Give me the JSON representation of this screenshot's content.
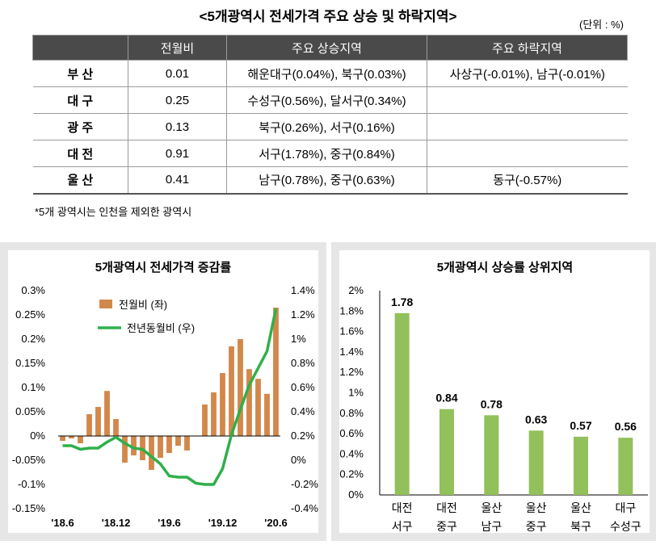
{
  "header": {
    "title": "<5개광역시 전세가격 주요 상승 및 하락지역>",
    "unit": "(단위 : %)"
  },
  "table": {
    "columns": [
      "",
      "전월비",
      "주요 상승지역",
      "주요 하락지역"
    ],
    "rows": [
      {
        "city": "부 산",
        "mom": "0.01",
        "up": "해운대구(0.04%), 북구(0.03%)",
        "down": "사상구(-0.01%), 남구(-0.01%)"
      },
      {
        "city": "대 구",
        "mom": "0.25",
        "up": "수성구(0.56%), 달서구(0.34%)",
        "down": ""
      },
      {
        "city": "광 주",
        "mom": "0.13",
        "up": "북구(0.26%), 서구(0.16%)",
        "down": ""
      },
      {
        "city": "대 전",
        "mom": "0.91",
        "up": "서구(1.78%), 중구(0.84%)",
        "down": ""
      },
      {
        "city": "울 산",
        "mom": "0.41",
        "up": "남구(0.78%), 중구(0.63%)",
        "down": "동구(-0.57%)"
      }
    ]
  },
  "footnote": "*5개 광역시는 인천을 제외한 광역시",
  "colors": {
    "bar_orange": "#d2884a",
    "line_green": "#2eb04a",
    "bar_green": "#92c05a",
    "panel_bg": "#e6e6e6",
    "header_bg": "#4a4a4a"
  },
  "chart_data": [
    {
      "type": "bar+line",
      "title": "5개광역시 전세가격 증감률",
      "legend": [
        "전월비 (좌)",
        "전년동월비 (우)"
      ],
      "x_ticks": [
        "'18.6",
        "'18.12",
        "'19.6",
        "'19.12",
        "'20.6"
      ],
      "left_axis": {
        "ticks": [
          "0.3%",
          "0.25%",
          "0.2%",
          "0.15%",
          "0.1%",
          "0.05%",
          "0%",
          "-0.05%",
          "-0.1%",
          "-0.15%"
        ],
        "ylim": [
          -0.15,
          0.3
        ]
      },
      "right_axis": {
        "ticks": [
          "1.4%",
          "1.2%",
          "1%",
          "0.8%",
          "0.6%",
          "0.4%",
          "0.2%",
          "0%",
          "-0.2%",
          "-0.4%"
        ],
        "ylim": [
          -0.4,
          1.4
        ]
      },
      "series": [
        {
          "name": "전월비 (좌)",
          "kind": "bar",
          "axis": "left",
          "values": [
            -0.01,
            -0.005,
            -0.015,
            0.045,
            0.06,
            0.093,
            0.035,
            -0.055,
            -0.04,
            -0.05,
            -0.07,
            -0.045,
            -0.035,
            -0.02,
            -0.03,
            0.0,
            0.065,
            0.09,
            0.13,
            0.185,
            0.2,
            0.138,
            0.118,
            0.087,
            0.265
          ]
        },
        {
          "name": "전년동월비 (우)",
          "kind": "line",
          "axis": "right",
          "values": [
            0.12,
            0.12,
            0.09,
            0.1,
            0.1,
            0.15,
            0.19,
            0.14,
            0.1,
            0.09,
            0.03,
            -0.03,
            -0.13,
            -0.14,
            -0.14,
            -0.19,
            -0.2,
            -0.2,
            -0.07,
            0.21,
            0.42,
            0.62,
            0.76,
            0.9,
            1.25
          ]
        }
      ]
    },
    {
      "type": "bar",
      "title": "5개광역시 상승률 상위지역",
      "categories": [
        [
          "대전",
          "서구"
        ],
        [
          "대전",
          "중구"
        ],
        [
          "울산",
          "남구"
        ],
        [
          "울산",
          "중구"
        ],
        [
          "울산",
          "북구"
        ],
        [
          "대구",
          "수성구"
        ]
      ],
      "values": [
        1.78,
        0.84,
        0.78,
        0.63,
        0.57,
        0.56
      ],
      "labels": [
        "1.78",
        "0.84",
        "0.78",
        "0.63",
        "0.57",
        "0.56"
      ],
      "y_ticks": [
        "2%",
        "1.8%",
        "1.6%",
        "1.4%",
        "1.2%",
        "1%",
        "0.8%",
        "0.6%",
        "0.4%",
        "0.2%",
        "0%"
      ],
      "ylim": [
        0,
        2
      ]
    }
  ]
}
